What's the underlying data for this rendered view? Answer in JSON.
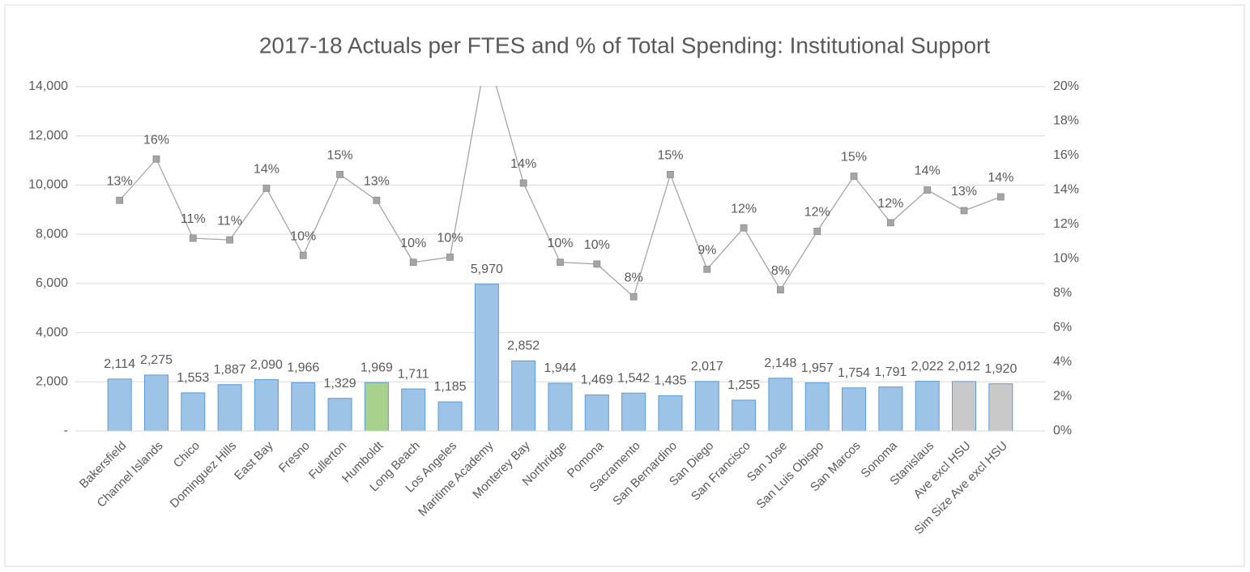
{
  "chart_data": {
    "type": "bar",
    "title": "2017-18 Actuals per FTES and % of Total Spending: Institutional Support",
    "categories": [
      "Bakersfield",
      "Channel Islands",
      "Chico",
      "Dominguez Hills",
      "East Bay",
      "Fresno",
      "Fullerton",
      "Humboldt",
      "Long Beach",
      "Los Angeles",
      "Maritime Academy",
      "Monterey Bay",
      "Northridge",
      "Pomona",
      "Sacramento",
      "San Bernardino",
      "San Diego",
      "San Francisco",
      "San Jose",
      "San Luis Obispo",
      "San Marcos",
      "Sonoma",
      "Stanislaus",
      "Ave excl HSU",
      "Sim Size Ave excl HSU"
    ],
    "series": [
      {
        "type": "bar",
        "values": [
          2114,
          2275,
          1553,
          1887,
          2090,
          1966,
          1329,
          1969,
          1711,
          1185,
          5970,
          2852,
          1944,
          1469,
          1542,
          1435,
          2017,
          1255,
          2148,
          1957,
          1754,
          1791,
          2022,
          2012,
          1920
        ],
        "value_labels": [
          "2,114",
          "2,275",
          "1,553",
          "1,887",
          "2,090",
          "1,966",
          "1,329",
          "1,969",
          "1,711",
          "1,185",
          "5,970",
          "2,852",
          "1,944",
          "1,469",
          "1,542",
          "1,435",
          "2,017",
          "1,255",
          "2,148",
          "1,957",
          "1,754",
          "1,791",
          "2,022",
          "2,012",
          "1,920"
        ],
        "colors": [
          "#9dc3e6",
          "#9dc3e6",
          "#9dc3e6",
          "#9dc3e6",
          "#9dc3e6",
          "#9dc3e6",
          "#9dc3e6",
          "#a9d18e",
          "#9dc3e6",
          "#9dc3e6",
          "#9dc3e6",
          "#9dc3e6",
          "#9dc3e6",
          "#9dc3e6",
          "#9dc3e6",
          "#9dc3e6",
          "#9dc3e6",
          "#9dc3e6",
          "#9dc3e6",
          "#9dc3e6",
          "#9dc3e6",
          "#9dc3e6",
          "#9dc3e6",
          "#c9c9c9",
          "#c9c9c9"
        ]
      },
      {
        "type": "line",
        "axis": "y2",
        "color": "#a5a5a5",
        "values": [
          13.4,
          15.8,
          11.2,
          11.1,
          14.1,
          10.2,
          14.9,
          13.4,
          9.8,
          10.1,
          22,
          14.4,
          9.8,
          9.7,
          7.8,
          14.9,
          9.4,
          11.8,
          8.2,
          11.6,
          14.8,
          12.1,
          14.0,
          12.8,
          13.6
        ],
        "value_labels": [
          "13%",
          "16%",
          "11%",
          "11%",
          "14%",
          "10%",
          "15%",
          "13%",
          "10%",
          "10%",
          null,
          "14%",
          "10%",
          "10%",
          "8%",
          "15%",
          "9%",
          "12%",
          "8%",
          "12%",
          "15%",
          "12%",
          "14%",
          "13%",
          "14%"
        ]
      }
    ],
    "ylim": [
      0,
      14000
    ],
    "yticks": [
      {
        "value": 0,
        "label": "-"
      },
      {
        "value": 2000,
        "label": "2,000"
      },
      {
        "value": 4000,
        "label": "4,000"
      },
      {
        "value": 6000,
        "label": "6,000"
      },
      {
        "value": 8000,
        "label": "8,000"
      },
      {
        "value": 10000,
        "label": "10,000"
      },
      {
        "value": 12000,
        "label": "12,000"
      },
      {
        "value": 14000,
        "label": "14,000"
      }
    ],
    "y2lim": [
      0,
      20
    ],
    "y2ticks": [
      {
        "value": 0,
        "label": "0%"
      },
      {
        "value": 2,
        "label": "2%"
      },
      {
        "value": 4,
        "label": "4%"
      },
      {
        "value": 6,
        "label": "6%"
      },
      {
        "value": 8,
        "label": "8%"
      },
      {
        "value": 10,
        "label": "10%"
      },
      {
        "value": 12,
        "label": "12%"
      },
      {
        "value": 14,
        "label": "14%"
      },
      {
        "value": 16,
        "label": "16%"
      },
      {
        "value": 18,
        "label": "18%"
      },
      {
        "value": 20,
        "label": "20%"
      }
    ],
    "grid": true
  }
}
